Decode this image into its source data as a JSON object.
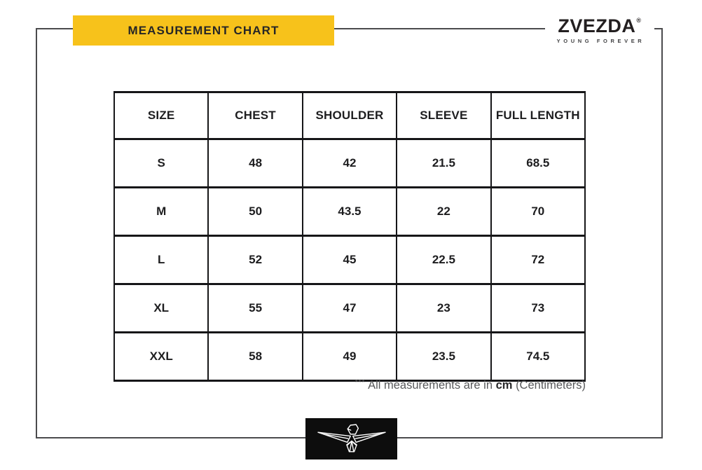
{
  "banner": {
    "title": "MEASUREMENT CHART"
  },
  "brand": {
    "name": "ZVEZDA",
    "registered": "®",
    "tagline": "YOUNG FOREVER"
  },
  "chart_data": {
    "type": "table",
    "title": "MEASUREMENT CHART",
    "columns": [
      "SIZE",
      "CHEST",
      "SHOULDER",
      "SLEEVE",
      "FULL LENGTH"
    ],
    "rows": [
      [
        "S",
        "48",
        "42",
        "21.5",
        "68.5"
      ],
      [
        "M",
        "50",
        "43.5",
        "22",
        "70"
      ],
      [
        "L",
        "52",
        "45",
        "22.5",
        "72"
      ],
      [
        "XL",
        "55",
        "47",
        "23",
        "73"
      ],
      [
        "XXL",
        "58",
        "49",
        "23.5",
        "74.5"
      ]
    ],
    "unit": "cm"
  },
  "footnote": {
    "stars": "***",
    "prefix": "All measurements are in",
    "unit": "cm",
    "suffix": "(Centimeters)"
  },
  "icons": {
    "bottom_logo": "eagle-icon"
  },
  "colors": {
    "accent_yellow": "#f7c21b",
    "table_border": "#161618",
    "frame_border": "#4b4b4d",
    "footnote_gray": "#58595b",
    "logo_box_black": "#0d0d0d",
    "text_dark": "#231f20"
  }
}
